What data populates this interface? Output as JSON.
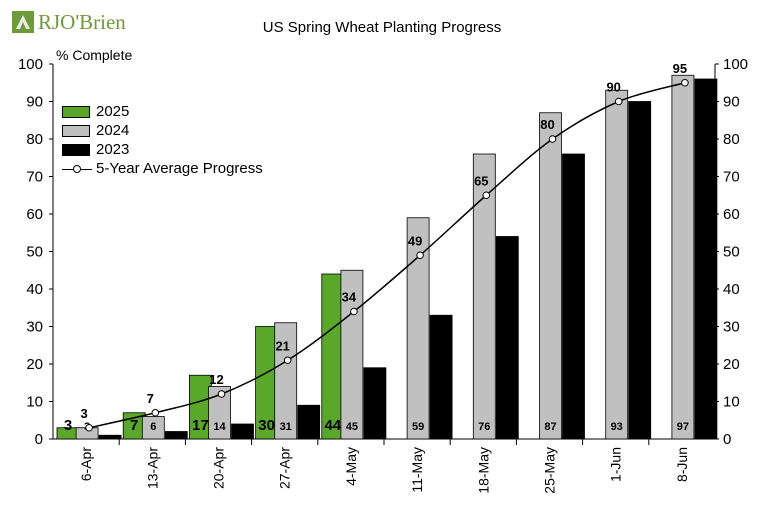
{
  "brand": {
    "logo_text": "RJO'Brien",
    "logo_color": "#6f9a3a"
  },
  "chart_data": {
    "type": "bar",
    "title": "US Spring Wheat Planting Progress",
    "ylabel": "% Complete",
    "xlabel": "",
    "ylim": [
      0,
      100
    ],
    "yticks": [
      0,
      10,
      20,
      30,
      40,
      50,
      60,
      70,
      80,
      90,
      100
    ],
    "grid": false,
    "legend_position": "top-left",
    "categories": [
      "6-Apr",
      "13-Apr",
      "20-Apr",
      "27-Apr",
      "4-May",
      "11-May",
      "18-May",
      "25-May",
      "1-Jun",
      "8-Jun"
    ],
    "series": [
      {
        "name": "2025",
        "kind": "bar",
        "color": "#5aa82a",
        "values": [
          3,
          7,
          17,
          30,
          44,
          null,
          null,
          null,
          null,
          null
        ],
        "labels": [
          "3",
          "7",
          "17",
          "30",
          "44",
          "",
          "",
          "",
          "",
          ""
        ]
      },
      {
        "name": "2024",
        "kind": "bar",
        "color": "#c0c0c0",
        "values": [
          3,
          6,
          14,
          31,
          45,
          59,
          76,
          87,
          93,
          97
        ],
        "labels": [
          "3",
          "6",
          "14",
          "31",
          "45",
          "59",
          "76",
          "87",
          "93",
          "97"
        ]
      },
      {
        "name": "2023",
        "kind": "bar",
        "color": "#000000",
        "values": [
          1,
          2,
          4,
          9,
          19,
          33,
          54,
          76,
          90,
          96
        ],
        "labels": [
          "",
          "",
          "",
          "",
          "",
          "",
          "",
          "",
          "",
          ""
        ]
      },
      {
        "name": "5-Year Average Progress",
        "kind": "line",
        "color": "#000000",
        "values": [
          3,
          7,
          12,
          21,
          34,
          49,
          65,
          80,
          90,
          95
        ],
        "labels": [
          "3",
          "7",
          "12",
          "21",
          "34",
          "49",
          "65",
          "80",
          "90",
          "95"
        ]
      }
    ]
  }
}
